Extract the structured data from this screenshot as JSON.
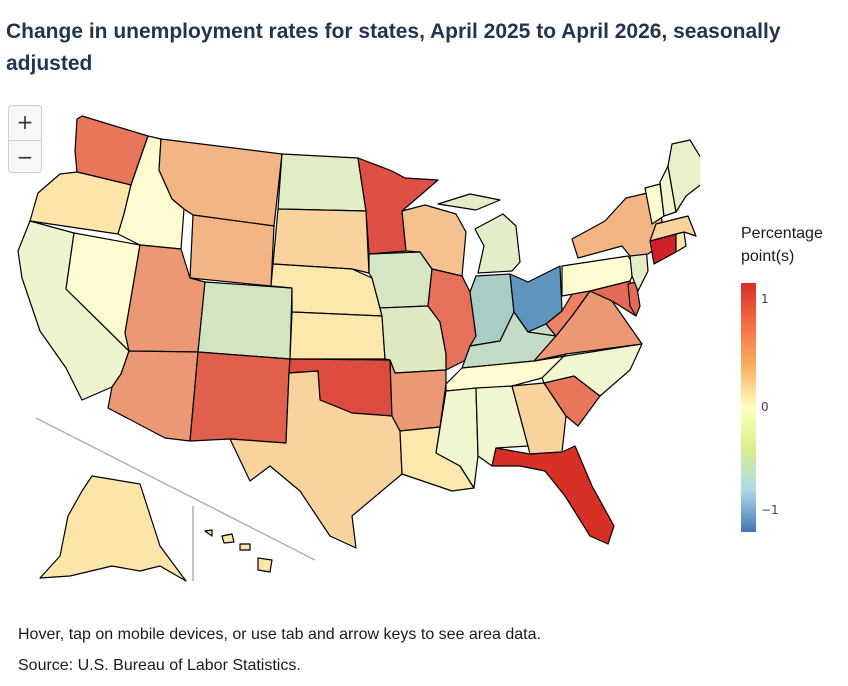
{
  "title": "Change in unemployment rates for states, April 2025 to April 2026, seasonally adjusted",
  "zoom": {
    "in_label": "+",
    "out_label": "−"
  },
  "legend": {
    "title_line1": "Percentage",
    "title_line2": "point(s)",
    "ticks": [
      "1",
      "0",
      "−1"
    ],
    "colors": [
      "#d73027",
      "#f46d43",
      "#fdae61",
      "#ffffbf",
      "#d9ef8b",
      "#abd9e9",
      "#4575b4"
    ]
  },
  "hover_note": "Hover, tap on mobile devices, or use tab and arrow keys to see area data.",
  "source": "Source: U.S. Bureau of Labor Statistics.",
  "map_regions": [
    {
      "id": "WA",
      "fill": "#e8765a"
    },
    {
      "id": "OR",
      "fill": "#fbe5a8"
    },
    {
      "id": "CA",
      "fill": "#eef4cd"
    },
    {
      "id": "NV",
      "fill": "#fffbd0"
    },
    {
      "id": "ID",
      "fill": "#fffbd0"
    },
    {
      "id": "MT",
      "fill": "#f4b584"
    },
    {
      "id": "WY",
      "fill": "#f4b584"
    },
    {
      "id": "UT",
      "fill": "#ec9874"
    },
    {
      "id": "AZ",
      "fill": "#ec9874"
    },
    {
      "id": "CO",
      "fill": "#d3e4c2"
    },
    {
      "id": "NM",
      "fill": "#e0604c"
    },
    {
      "id": "ND",
      "fill": "#e1edc4"
    },
    {
      "id": "SD",
      "fill": "#f8d39d"
    },
    {
      "id": "NE",
      "fill": "#fce7ac"
    },
    {
      "id": "KS",
      "fill": "#fce7ac"
    },
    {
      "id": "OK",
      "fill": "#de4c3f"
    },
    {
      "id": "TX",
      "fill": "#f8d39d"
    },
    {
      "id": "MN",
      "fill": "#de5044"
    },
    {
      "id": "IA",
      "fill": "#d6e6c4"
    },
    {
      "id": "MO",
      "fill": "#dfeac2"
    },
    {
      "id": "AR",
      "fill": "#ec9874"
    },
    {
      "id": "LA",
      "fill": "#fce7ac"
    },
    {
      "id": "WI",
      "fill": "#f6c190"
    },
    {
      "id": "IL",
      "fill": "#e6715a"
    },
    {
      "id": "MI",
      "fill": "#e3edc8"
    },
    {
      "id": "IN",
      "fill": "#a8cdc4"
    },
    {
      "id": "OH",
      "fill": "#5f95bd"
    },
    {
      "id": "KY",
      "fill": "#c4dcc5"
    },
    {
      "id": "TN",
      "fill": "#fffbd0"
    },
    {
      "id": "MS",
      "fill": "#f2f6d0"
    },
    {
      "id": "AL",
      "fill": "#f2f6d0"
    },
    {
      "id": "GA",
      "fill": "#f8d39d"
    },
    {
      "id": "FL",
      "fill": "#d73027"
    },
    {
      "id": "SC",
      "fill": "#e8765a"
    },
    {
      "id": "NC",
      "fill": "#f2f6d0"
    },
    {
      "id": "VA",
      "fill": "#ec9874"
    },
    {
      "id": "WV",
      "fill": "#ec8263"
    },
    {
      "id": "MD",
      "fill": "#e36b55"
    },
    {
      "id": "DE",
      "fill": "#e36b55"
    },
    {
      "id": "PA",
      "fill": "#fffbd0"
    },
    {
      "id": "NJ",
      "fill": "#e3edc8"
    },
    {
      "id": "NY",
      "fill": "#f4b584"
    },
    {
      "id": "CT",
      "fill": "#d0202a"
    },
    {
      "id": "RI",
      "fill": "#fbe5a8"
    },
    {
      "id": "MA",
      "fill": "#f8d39d"
    },
    {
      "id": "VT",
      "fill": "#fffbd0"
    },
    {
      "id": "NH",
      "fill": "#f2f6d0"
    },
    {
      "id": "ME",
      "fill": "#e8f0ca"
    },
    {
      "id": "AK",
      "fill": "#fbe5a8"
    },
    {
      "id": "HI",
      "fill": "#fbe5a8"
    }
  ]
}
